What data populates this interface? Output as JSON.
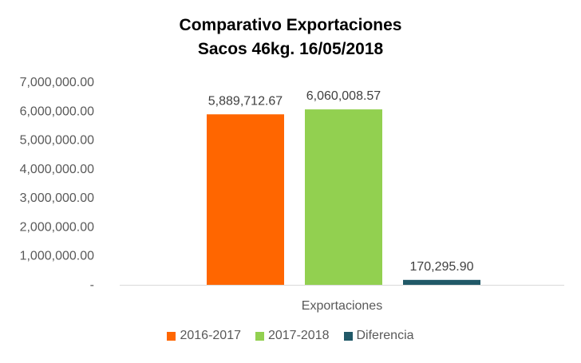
{
  "chart_data": {
    "type": "bar",
    "title": [
      "Comparativo Exportaciones",
      "Sacos 46kg. 16/05/2018"
    ],
    "categories": [
      "Exportaciones"
    ],
    "series": [
      {
        "name": "2016-2017",
        "values": [
          5889712.67
        ],
        "label": "5,889,712.67",
        "color": "#ff6600"
      },
      {
        "name": "2017-2018",
        "values": [
          6060008.57
        ],
        "label": "6,060,008.57",
        "color": "#92d050"
      },
      {
        "name": "Diferencia",
        "values": [
          170295.9
        ],
        "label": "170,295.90",
        "color": "#215968"
      }
    ],
    "yticks": [
      {
        "value": 0,
        "label": "-"
      },
      {
        "value": 1000000,
        "label": "1,000,000.00"
      },
      {
        "value": 2000000,
        "label": "2,000,000.00"
      },
      {
        "value": 3000000,
        "label": "3,000,000.00"
      },
      {
        "value": 4000000,
        "label": "4,000,000.00"
      },
      {
        "value": 5000000,
        "label": "5,000,000.00"
      },
      {
        "value": 6000000,
        "label": "6,000,000.00"
      },
      {
        "value": 7000000,
        "label": "7,000,000.00"
      }
    ],
    "ylim": [
      0,
      7000000
    ],
    "xlabel": "",
    "ylabel": "",
    "grid": false,
    "legend_position": "bottom"
  }
}
